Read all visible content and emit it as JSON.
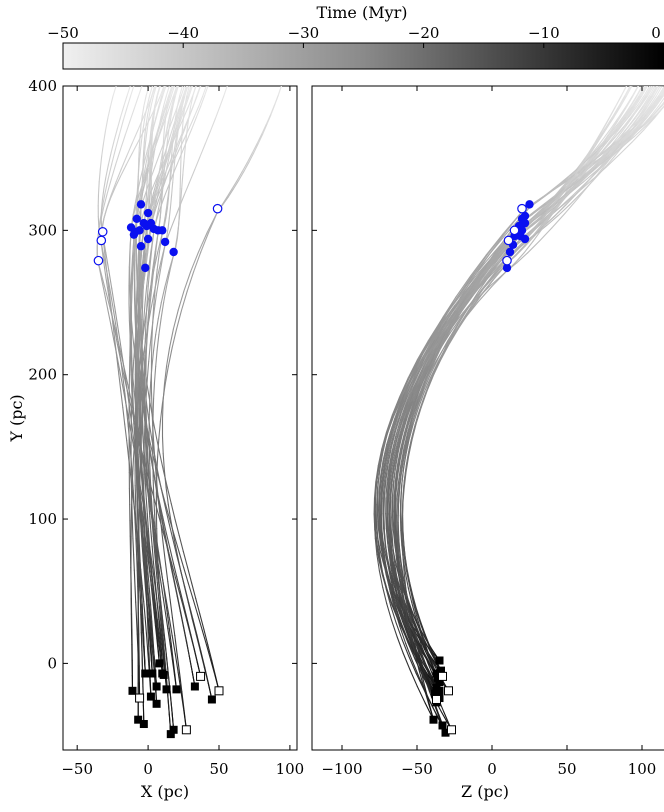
{
  "colorbar": {
    "label": "Time (Myr)",
    "ticks": [
      -50,
      -40,
      -30,
      -20,
      -10,
      0
    ],
    "tick_labels": [
      "−50",
      "−40",
      "−30",
      "−20",
      "−10",
      "0"
    ],
    "range": [
      -50,
      0
    ],
    "color_at_min": "#f0f0f0",
    "color_at_max": "#000000"
  },
  "chart_data": [
    {
      "type": "line",
      "panel": "left",
      "xlabel": "X (pc)",
      "ylabel": "Y (pc)",
      "xlim": [
        -60,
        105
      ],
      "ylim": [
        -60,
        400
      ],
      "xticks": [
        -50,
        0,
        50,
        100
      ],
      "xtick_labels": [
        "−50",
        "0",
        "50",
        "100"
      ],
      "yticks": [
        0,
        100,
        200,
        300,
        400
      ],
      "ytick_labels": [
        "0",
        "100",
        "200",
        "300",
        "400"
      ],
      "series_description": "Orbit traced back from present (black squares, t=0) to t=-50 Myr, colored by time",
      "present_filled": [
        [
          -2,
          -7
        ],
        [
          3,
          -7
        ],
        [
          6,
          -16
        ],
        [
          10,
          -7
        ],
        [
          13,
          -18
        ],
        [
          20,
          -18
        ],
        [
          33,
          -16
        ],
        [
          -11,
          -19
        ],
        [
          2,
          -23
        ],
        [
          6,
          -28
        ],
        [
          -3,
          -42
        ],
        [
          -7,
          -39
        ],
        [
          18,
          -46
        ],
        [
          16,
          -49
        ],
        [
          45,
          -25
        ],
        [
          8,
          0
        ],
        [
          11,
          -8
        ]
      ],
      "present_open": [
        [
          -6,
          -24
        ],
        [
          37,
          -9
        ],
        [
          50,
          -19
        ],
        [
          27,
          -46
        ]
      ],
      "past_filled": [
        [
          -5,
          318
        ],
        [
          0,
          312
        ],
        [
          -8,
          308
        ],
        [
          -3,
          305
        ],
        [
          -1,
          303
        ],
        [
          2,
          305
        ],
        [
          -6,
          300
        ],
        [
          -12,
          302
        ],
        [
          -9,
          299
        ],
        [
          4,
          301
        ],
        [
          -10,
          297
        ],
        [
          7,
          300
        ],
        [
          10,
          300
        ],
        [
          12,
          292
        ],
        [
          0,
          294
        ],
        [
          -5,
          289
        ],
        [
          18,
          285
        ],
        [
          -2,
          274
        ]
      ],
      "past_open": [
        [
          -32,
          299
        ],
        [
          -33,
          293
        ],
        [
          -35,
          279
        ],
        [
          49,
          315
        ]
      ],
      "colors": {
        "past_markers": "#0a10f0",
        "present_markers": "#000000"
      }
    },
    {
      "type": "line",
      "panel": "right",
      "xlabel": "Z (pc)",
      "ylabel": "",
      "xlim": [
        -120,
        120
      ],
      "ylim": [
        -60,
        400
      ],
      "xticks": [
        -100,
        -50,
        0,
        50,
        100
      ],
      "xtick_labels": [
        "−100",
        "−50",
        "0",
        "50",
        "100"
      ],
      "yticks": [
        0,
        100,
        200,
        300,
        400
      ],
      "series_description": "Orbit traced back from present (black squares) to t=-50 Myr, colored by time",
      "present_filled": [
        [
          -37,
          -7
        ],
        [
          -34,
          -5
        ],
        [
          -36,
          -10
        ],
        [
          -35,
          -13
        ],
        [
          -37,
          -17
        ],
        [
          -35,
          -19
        ],
        [
          -38,
          -21
        ],
        [
          -35,
          -24
        ],
        [
          -37,
          -27
        ],
        [
          -39,
          -39
        ],
        [
          -33,
          -43
        ],
        [
          -31,
          -48
        ],
        [
          -35,
          2
        ]
      ],
      "present_open": [
        [
          -33,
          -9
        ],
        [
          -29,
          -19
        ],
        [
          -37,
          -25
        ],
        [
          -27,
          -46
        ]
      ],
      "past_filled": [
        [
          25,
          318
        ],
        [
          22,
          310
        ],
        [
          20,
          308
        ],
        [
          22,
          305
        ],
        [
          18,
          303
        ],
        [
          20,
          300
        ],
        [
          16,
          299
        ],
        [
          19,
          296
        ],
        [
          15,
          296
        ],
        [
          22,
          294
        ],
        [
          14,
          290
        ],
        [
          12,
          285
        ],
        [
          10,
          274
        ]
      ],
      "past_open": [
        [
          20,
          315
        ],
        [
          11,
          293
        ],
        [
          10,
          279
        ],
        [
          15,
          300
        ]
      ],
      "colors": {
        "past_markers": "#0a10f0",
        "present_markers": "#000000"
      }
    }
  ]
}
